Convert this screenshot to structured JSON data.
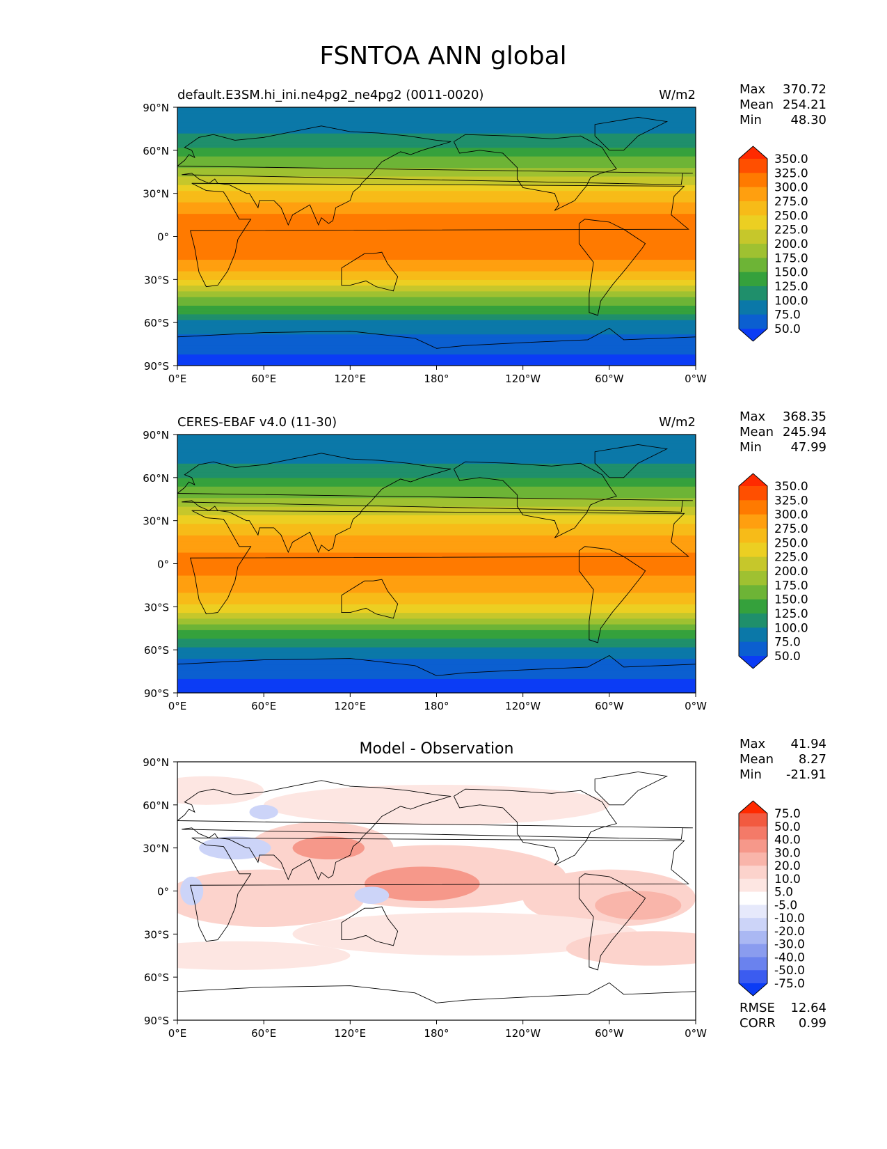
{
  "figure": {
    "title": "FSNTOA ANN global"
  },
  "chart_data": [
    {
      "type": "heatmap",
      "title": "default.E3SM.hi_ini.ne4pg2_ne4pg2 (0011-0020)",
      "units": "W/m2",
      "stats": {
        "max_label": "Max",
        "max": "370.72",
        "mean_label": "Mean",
        "mean": "254.21",
        "min_label": "Min",
        "min": "48.30"
      },
      "x_ticks": [
        "0°E",
        "60°E",
        "120°E",
        "180°",
        "120°W",
        "60°W",
        "0°W"
      ],
      "y_ticks": [
        "90°N",
        "60°N",
        "30°N",
        "0°",
        "30°S",
        "60°S",
        "90°S"
      ],
      "xlim": [
        0,
        360
      ],
      "ylim": [
        -90,
        90
      ],
      "levels": [
        "350.0",
        "325.0",
        "300.0",
        "275.0",
        "250.0",
        "225.0",
        "200.0",
        "175.0",
        "150.0",
        "125.0",
        "100.0",
        "75.0",
        "50.0"
      ],
      "colors": [
        "#ff2a00",
        "#ff4f00",
        "#ff7a00",
        "#ff9f0f",
        "#f7bb18",
        "#eccf22",
        "#c6c72b",
        "#9fc131",
        "#6db436",
        "#35a13c",
        "#1f8f6b",
        "#0b78a8",
        "#0b5fd0",
        "#0b3cf5"
      ],
      "zonal_means": {
        "lat": [
          -90,
          -75,
          -60,
          -45,
          -30,
          -15,
          0,
          15,
          30,
          45,
          60,
          75,
          90
        ],
        "values": [
          40,
          58,
          95,
          160,
          255,
          300,
          320,
          300,
          255,
          190,
          130,
          95,
          80
        ]
      }
    },
    {
      "type": "heatmap",
      "title": "CERES-EBAF v4.0 (11-30)",
      "units": "W/m2",
      "stats": {
        "max_label": "Max",
        "max": "368.35",
        "mean_label": "Mean",
        "mean": "245.94",
        "min_label": "Min",
        "min": "47.99"
      },
      "x_ticks": [
        "0°E",
        "60°E",
        "120°E",
        "180°",
        "120°W",
        "60°W",
        "0°W"
      ],
      "y_ticks": [
        "90°N",
        "60°N",
        "30°N",
        "0°",
        "30°S",
        "60°S",
        "90°S"
      ],
      "xlim": [
        0,
        360
      ],
      "ylim": [
        -90,
        90
      ],
      "levels": [
        "350.0",
        "325.0",
        "300.0",
        "275.0",
        "250.0",
        "225.0",
        "200.0",
        "175.0",
        "150.0",
        "125.0",
        "100.0",
        "75.0",
        "50.0"
      ],
      "colors": [
        "#ff2a00",
        "#ff4f00",
        "#ff7a00",
        "#ff9f0f",
        "#f7bb18",
        "#eccf22",
        "#c6c72b",
        "#9fc131",
        "#6db436",
        "#35a13c",
        "#1f8f6b",
        "#0b78a8",
        "#0b5fd0",
        "#0b3cf5"
      ],
      "zonal_means": {
        "lat": [
          -90,
          -75,
          -60,
          -45,
          -30,
          -15,
          0,
          15,
          30,
          45,
          60,
          75,
          90
        ],
        "values": [
          38,
          55,
          92,
          155,
          245,
          290,
          310,
          290,
          245,
          180,
          125,
          90,
          78
        ]
      }
    },
    {
      "type": "heatmap",
      "title": "Model - Observation",
      "units": "",
      "stats": {
        "max_label": "Max",
        "max": "41.94",
        "mean_label": "Mean",
        "mean": "8.27",
        "min_label": "Min",
        "min": "-21.91"
      },
      "extra_stats": {
        "rmse_label": "RMSE",
        "rmse": "12.64",
        "corr_label": "CORR",
        "corr": "0.99"
      },
      "x_ticks": [
        "0°E",
        "60°E",
        "120°E",
        "180°",
        "120°W",
        "60°W",
        "0°W"
      ],
      "y_ticks": [
        "90°N",
        "60°N",
        "30°N",
        "0°",
        "30°S",
        "60°S",
        "90°S"
      ],
      "xlim": [
        0,
        360
      ],
      "ylim": [
        -90,
        90
      ],
      "levels": [
        "75.0",
        "50.0",
        "40.0",
        "30.0",
        "20.0",
        "10.0",
        "5.0",
        "-5.0",
        "-10.0",
        "-20.0",
        "-30.0",
        "-40.0",
        "-50.0",
        "-75.0"
      ],
      "colors": [
        "#ff2a00",
        "#f25a40",
        "#f47a68",
        "#f6988a",
        "#f9b5aa",
        "#fcd3cc",
        "#fde6e2",
        "#ffffff",
        "#e6e9fb",
        "#ccd4f8",
        "#aab8f3",
        "#8a9cef",
        "#6a82ee",
        "#3b5cf0",
        "#0b3cf5"
      ]
    }
  ]
}
